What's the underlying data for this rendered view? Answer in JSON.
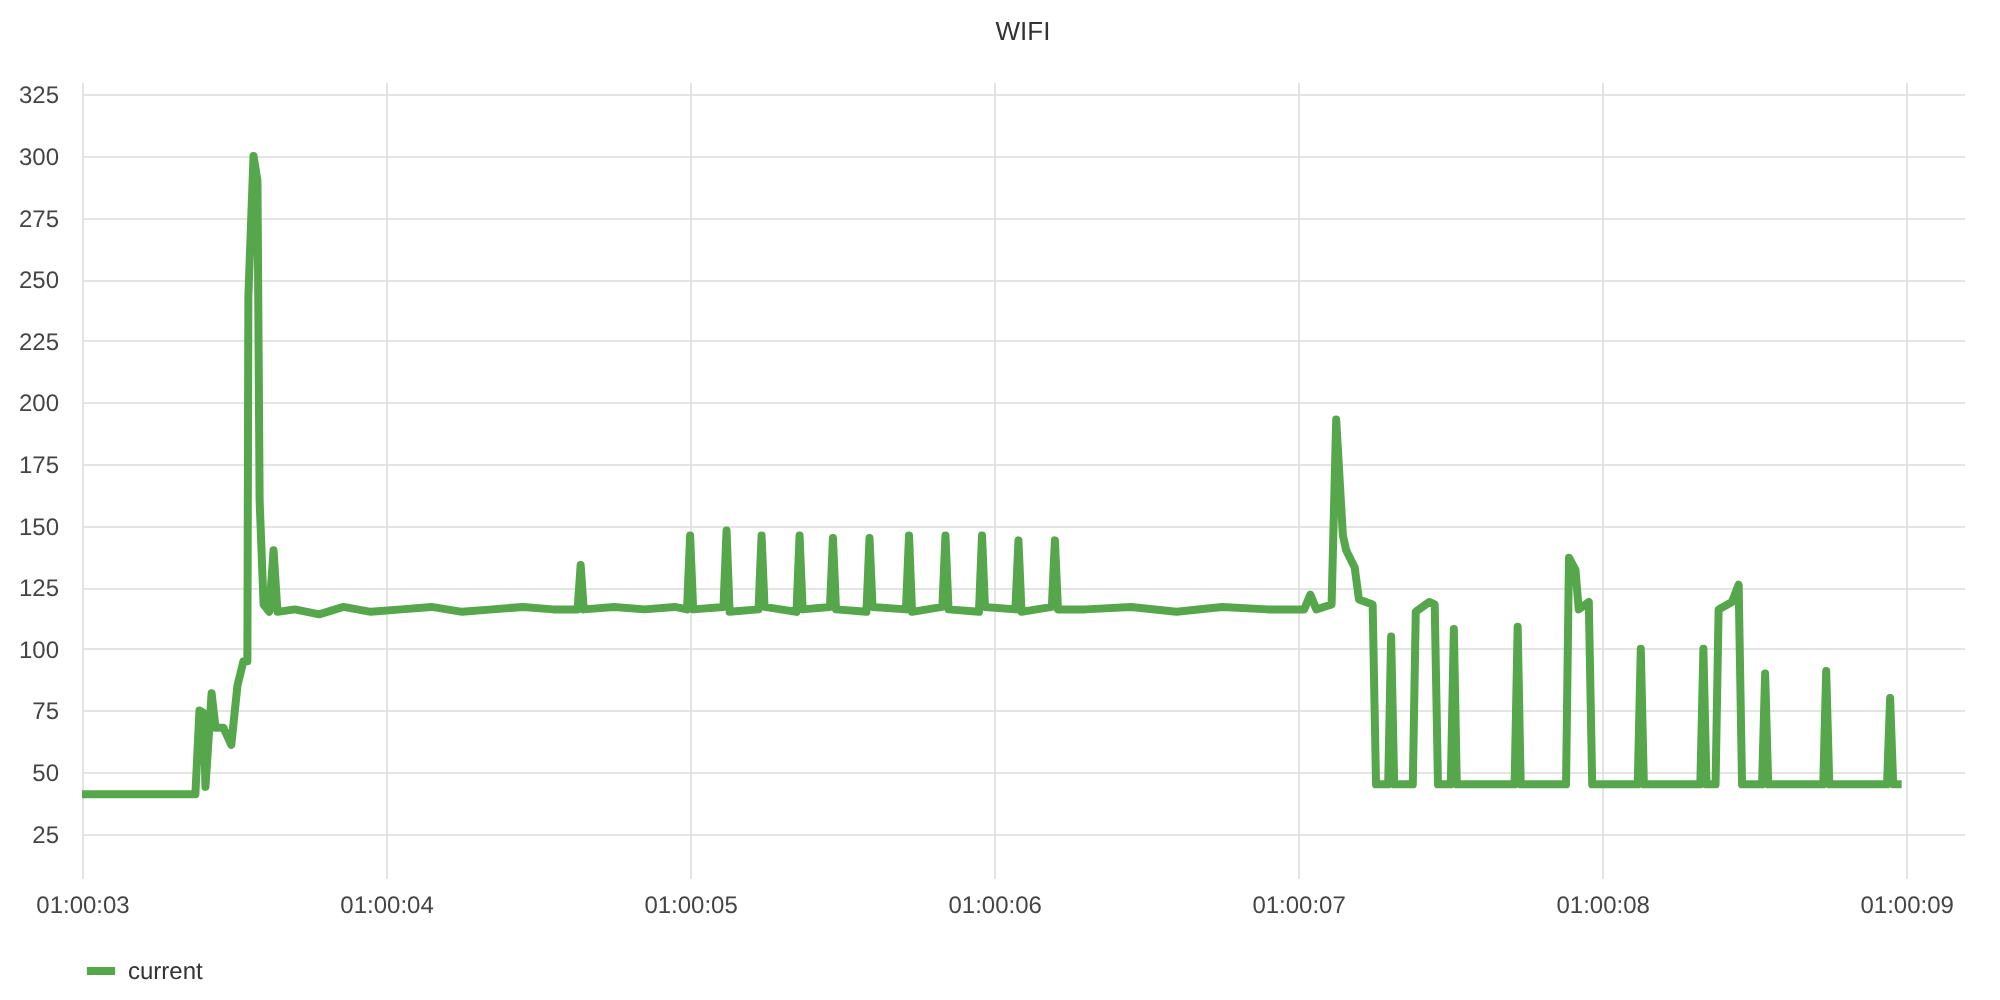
{
  "chart_data": {
    "type": "line",
    "title": "WIFI",
    "x": [
      1.0008333,
      1.0009369,
      1.0009406,
      1.0009444,
      1.0009461,
      1.0009517,
      1.0009553,
      1.0009625,
      1.0009697,
      1.0009753,
      1.0009808,
      1.0009844,
      1.0009853,
      1.00099,
      1.0009936,
      1.0009956,
      1.0009992,
      1.0010044,
      1.0010083,
      1.0010119,
      1.0010278,
      1.00105,
      1.0010722,
      1.0010972,
      1.001125,
      1.0011528,
      1.0011806,
      1.0012083,
      1.0012361,
      1.0012639,
      1.0012861,
      1.0012889,
      1.0012917,
      1.0013194,
      1.0013472,
      1.001375,
      1.0013861,
      1.0013889,
      1.0013917,
      1.0014194,
      1.0014222,
      1.001425,
      1.0014514,
      1.0014542,
      1.0014569,
      1.0014861,
      1.0014889,
      1.0014917,
      1.0015167,
      1.0015194,
      1.0015222,
      1.00155,
      1.0015528,
      1.0015556,
      1.0015861,
      1.0015889,
      1.0015917,
      1.0016194,
      1.0016222,
      1.001625,
      1.0016528,
      1.0016556,
      1.0016583,
      1.0016861,
      1.0016889,
      1.0016917,
      1.0017194,
      1.0017222,
      1.001725,
      1.00175,
      1.0017917,
      1.0018333,
      1.001875,
      1.0019167,
      1.00195,
      1.0019556,
      1.0019611,
      1.001975,
      1.0019792,
      1.0019853,
      1.0019883,
      1.0019961,
      1.002,
      1.0020125,
      1.0020156,
      1.0020267,
      1.0020294,
      1.0020322,
      1.0020492,
      1.0020519,
      1.0020642,
      1.0020692,
      1.0020722,
      1.0020839,
      1.0020867,
      1.0020894,
      1.0021422,
      1.002145,
      1.0021478,
      1.0021892,
      1.0021919,
      1.0021978,
      1.0022008,
      1.00221,
      1.0022131,
      1.0022547,
      1.0022575,
      1.0022603,
      1.0023119,
      1.0023147,
      1.0023175,
      1.0023258,
      1.0023286,
      1.0023408,
      1.0023469,
      1.00235,
      1.0023683,
      1.0023711,
      1.0023739,
      1.0024242,
      1.0024269,
      1.0024297,
      1.0024825,
      1.0024853,
      1.0024881,
      1.0024958
    ],
    "series": [
      {
        "name": "current",
        "color": "#56a64b",
        "values": [
          41,
          41,
          75,
          74,
          44,
          82,
          68,
          68,
          61,
          85,
          95,
          95,
          243,
          300,
          290,
          160,
          118,
          115,
          140,
          115,
          116,
          114,
          117,
          115,
          116,
          117,
          115,
          116,
          117,
          116,
          116,
          134,
          116,
          117,
          116,
          117,
          116,
          146,
          116,
          117,
          148,
          115,
          116,
          146,
          117,
          115,
          146,
          116,
          117,
          145,
          116,
          115,
          145,
          117,
          116,
          146,
          115,
          117,
          146,
          116,
          115,
          146,
          117,
          116,
          144,
          115,
          117,
          144,
          116,
          116,
          117,
          115,
          117,
          116,
          116,
          122,
          116,
          118,
          193,
          146,
          140,
          133,
          120,
          118,
          45,
          45,
          105,
          45,
          45,
          115,
          119,
          118,
          45,
          45,
          108,
          45,
          45,
          109,
          45,
          45,
          137,
          132,
          116,
          119,
          45,
          45,
          100,
          45,
          45,
          100,
          45,
          45,
          116,
          119,
          126,
          45,
          45,
          90,
          45,
          45,
          91,
          45,
          45,
          80,
          45,
          45
        ]
      }
    ],
    "xlim": [
      1.0008333,
      1.0025528
    ],
    "xticks": [
      {
        "value": 1.0008333,
        "label": "01:00:03"
      },
      {
        "value": 1.0011111,
        "label": "01:00:04"
      },
      {
        "value": 1.0013889,
        "label": "01:00:05"
      },
      {
        "value": 1.0016667,
        "label": "01:00:06"
      },
      {
        "value": 1.0019444,
        "label": "01:00:07"
      },
      {
        "value": 1.0022222,
        "label": "01:00:08"
      },
      {
        "value": 1.0025,
        "label": "01:00:09"
      }
    ],
    "ylim": [
      7,
      330
    ],
    "yticks": [
      25,
      50,
      75,
      100,
      125,
      150,
      175,
      200,
      225,
      250,
      275,
      300,
      325
    ],
    "grid": true,
    "legend": "bottom left"
  }
}
